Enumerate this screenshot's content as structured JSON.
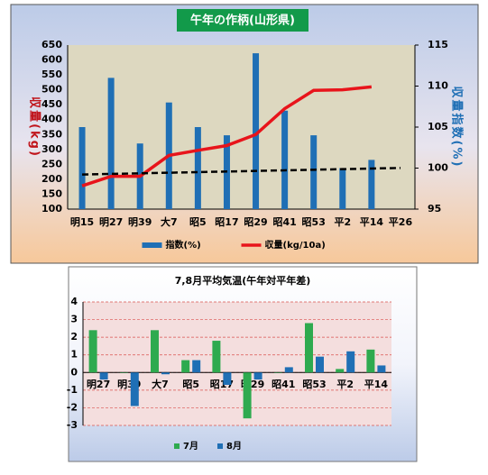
{
  "chart_data": [
    {
      "type": "bar",
      "title": "午年の作柄(山形県)",
      "y_label": "収量(kg)",
      "y2_label": "収量指数(%)",
      "categories": [
        "明15",
        "明27",
        "明39",
        "大7",
        "昭5",
        "昭17",
        "昭29",
        "昭41",
        "昭53",
        "平2",
        "平14",
        "平26"
      ],
      "series": [
        {
          "name": "指数(%)",
          "type": "bar",
          "axis": "y2",
          "color": "#1f6fb5",
          "values": [
            105,
            111,
            103,
            108,
            105,
            104,
            114,
            107,
            104,
            100,
            101,
            null
          ]
        },
        {
          "name": "収量(kg/10a)",
          "type": "line",
          "color": "#e8141b",
          "values": [
            178,
            210,
            210,
            280,
            297,
            313,
            350,
            437,
            498,
            500,
            510,
            null
          ]
        }
      ],
      "trendline": {
        "color": "#000000",
        "values": [
          216,
          218,
          220,
          222,
          224,
          226,
          228,
          230,
          232,
          234,
          236,
          238
        ]
      },
      "ylim": [
        100,
        650
      ],
      "yticks": [
        100,
        150,
        200,
        250,
        300,
        350,
        400,
        450,
        500,
        550,
        600,
        650
      ],
      "y2lim": [
        95,
        115
      ],
      "y2ticks": [
        95,
        100,
        105,
        110,
        115
      ]
    },
    {
      "type": "bar",
      "title": "7,8月平均気温(午年対平年差)",
      "categories": [
        "明27",
        "明39",
        "大7",
        "昭5",
        "昭17",
        "昭29",
        "昭41",
        "昭53",
        "平2",
        "平14"
      ],
      "series": [
        {
          "name": "7月",
          "color": "#2eaa4f",
          "values": [
            2.4,
            0,
            2.4,
            0.7,
            1.8,
            -2.6,
            0,
            2.8,
            0.2,
            1.3
          ]
        },
        {
          "name": "8月",
          "color": "#1f6fb5",
          "values": [
            -0.4,
            -1.9,
            -0.1,
            0.7,
            -0.7,
            -0.4,
            0.3,
            0.9,
            1.2,
            0.4
          ]
        }
      ],
      "ylim": [
        -3,
        4
      ],
      "yticks": [
        -3,
        -2,
        -1,
        0,
        1,
        2,
        3,
        4
      ],
      "grid": true
    }
  ]
}
